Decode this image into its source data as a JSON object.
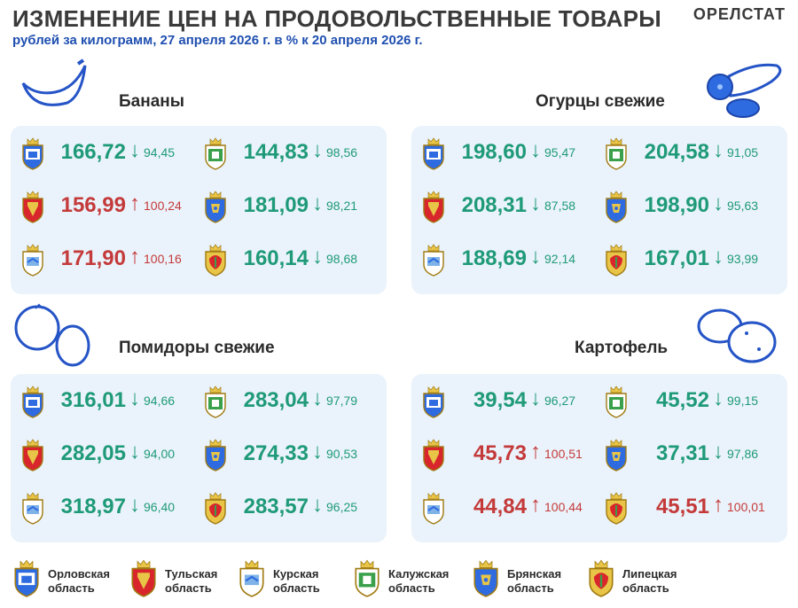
{
  "header": {
    "title": "ИЗМЕНЕНИЕ ЦЕН НА ПРОДОВОЛЬСТВЕННЫЕ ТОВАРЫ",
    "subtitle": "рублей за килограмм, 27 апреля 2026 г. в % к 20 апреля 2026 г.",
    "brand": "ОРЕЛСТАТ"
  },
  "colors": {
    "down": "#1f9a78",
    "up": "#c43a3a",
    "panel": "#eaf3fb",
    "subtitle": "#1f4fb0"
  },
  "products": [
    {
      "name": "Бананы",
      "icon": "banana-icon",
      "rows": [
        {
          "region": "orel",
          "price": "166,72",
          "dir": "down",
          "pct": "94,45"
        },
        {
          "region": "kaluga",
          "price": "144,83",
          "dir": "down",
          "pct": "98,56"
        },
        {
          "region": "tula",
          "price": "156,99",
          "dir": "up",
          "pct": "100,24"
        },
        {
          "region": "bryansk",
          "price": "181,09",
          "dir": "down",
          "pct": "98,21"
        },
        {
          "region": "kursk",
          "price": "171,90",
          "dir": "up",
          "pct": "100,16"
        },
        {
          "region": "lipetsk",
          "price": "160,14",
          "dir": "down",
          "pct": "98,68"
        }
      ]
    },
    {
      "name": "Огурцы свежие",
      "icon": "cucumber-icon",
      "rows": [
        {
          "region": "orel",
          "price": "198,60",
          "dir": "down",
          "pct": "95,47"
        },
        {
          "region": "kaluga",
          "price": "204,58",
          "dir": "down",
          "pct": "91,05"
        },
        {
          "region": "tula",
          "price": "208,31",
          "dir": "down",
          "pct": "87,58"
        },
        {
          "region": "bryansk",
          "price": "198,90",
          "dir": "down",
          "pct": "95,63"
        },
        {
          "region": "kursk",
          "price": "188,69",
          "dir": "down",
          "pct": "92,14"
        },
        {
          "region": "lipetsk",
          "price": "167,01",
          "dir": "down",
          "pct": "93,99"
        }
      ]
    },
    {
      "name": "Помидоры свежие",
      "icon": "tomato-icon",
      "rows": [
        {
          "region": "orel",
          "price": "316,01",
          "dir": "down",
          "pct": "94,66"
        },
        {
          "region": "kaluga",
          "price": "283,04",
          "dir": "down",
          "pct": "97,79"
        },
        {
          "region": "tula",
          "price": "282,05",
          "dir": "down",
          "pct": "94,00"
        },
        {
          "region": "bryansk",
          "price": "274,33",
          "dir": "down",
          "pct": "90,53"
        },
        {
          "region": "kursk",
          "price": "318,97",
          "dir": "down",
          "pct": "96,40"
        },
        {
          "region": "lipetsk",
          "price": "283,57",
          "dir": "down",
          "pct": "96,25"
        }
      ]
    },
    {
      "name": "Картофель",
      "icon": "potato-icon",
      "rows": [
        {
          "region": "orel",
          "price": "39,54",
          "dir": "down",
          "pct": "96,27"
        },
        {
          "region": "kaluga",
          "price": "45,52",
          "dir": "down",
          "pct": "99,15"
        },
        {
          "region": "tula",
          "price": "45,73",
          "dir": "up",
          "pct": "100,51"
        },
        {
          "region": "bryansk",
          "price": "37,31",
          "dir": "down",
          "pct": "97,86"
        },
        {
          "region": "kursk",
          "price": "44,84",
          "dir": "up",
          "pct": "100,44"
        },
        {
          "region": "lipetsk",
          "price": "45,51",
          "dir": "up",
          "pct": "100,01"
        }
      ]
    }
  ],
  "legend": [
    {
      "region": "orel",
      "label": "Орловская\nобласть"
    },
    {
      "region": "tula",
      "label": "Тульская\nобласть"
    },
    {
      "region": "kursk",
      "label": "Курская\nобласть"
    },
    {
      "region": "kaluga",
      "label": "Калужская\nобласть"
    },
    {
      "region": "bryansk",
      "label": "Брянская\nобласть"
    },
    {
      "region": "lipetsk",
      "label": "Липецкая\nобласть"
    }
  ],
  "arrows": {
    "down": "↓",
    "up": "↑"
  }
}
